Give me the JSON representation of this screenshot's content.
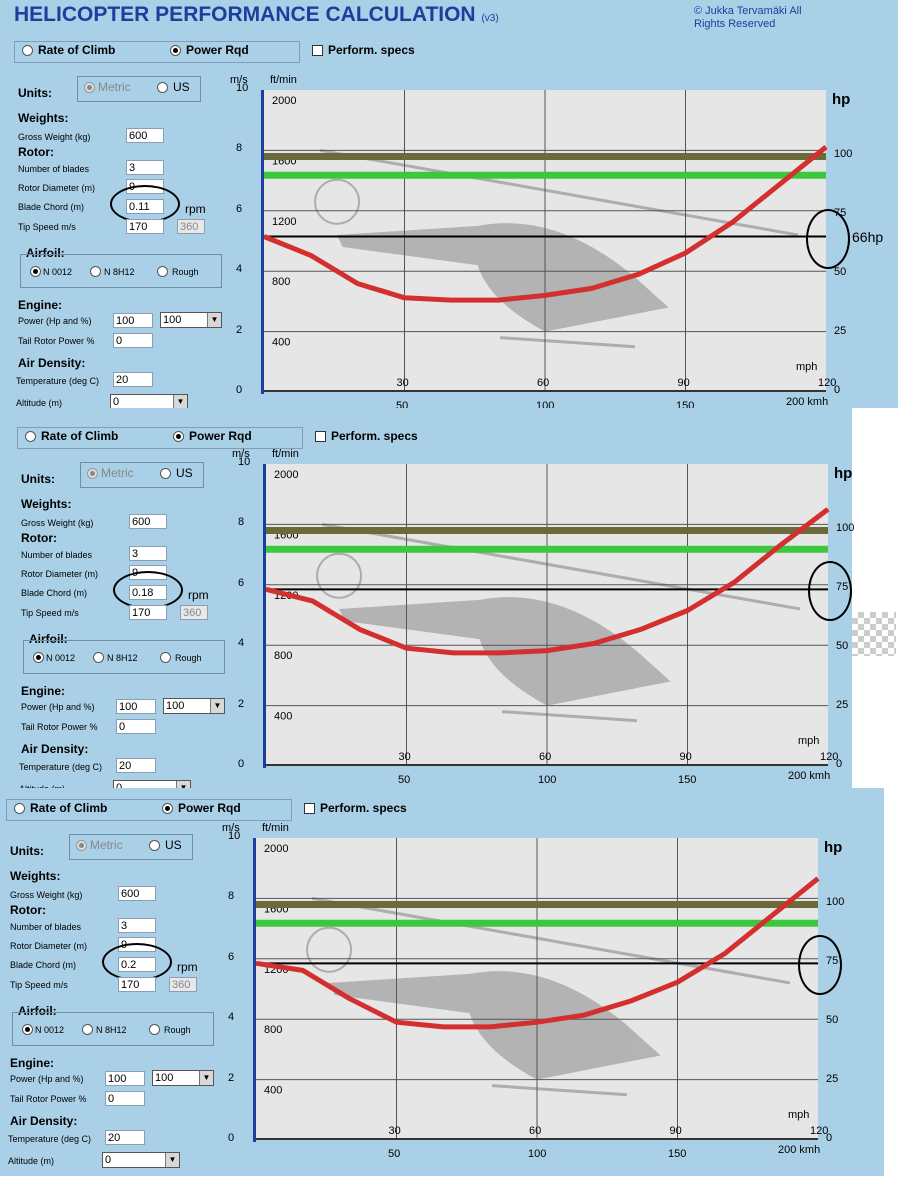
{
  "app": {
    "title": "HELICOPTER PERFORMANCE CALCULATION",
    "version": "(v3)",
    "copyright": "© Jukka Tervamäki All Rights Reserved"
  },
  "labels": {
    "mode_climb": "Rate of Climb",
    "mode_power": "Power Rqd",
    "perform_specs": "Perform. specs",
    "units": "Units:",
    "metric": "Metric",
    "us": "US",
    "weights": "Weights:",
    "gross_weight": "Gross Weight (kg)",
    "rotor": "Rotor:",
    "num_blades": "Number of blades",
    "rotor_diameter": "Rotor Diameter (m)",
    "blade_chord": "Blade Chord (m)",
    "rpm": "rpm",
    "tip_speed": "Tip Speed m/s",
    "airfoil": "Airfoil:",
    "airfoil_a": "N 0012",
    "airfoil_b": "N 8H12",
    "airfoil_c": "Rough",
    "engine": "Engine:",
    "power_hp": "Power (Hp and %)",
    "tail_rotor": "Tail Rotor Power %",
    "air_density": "Air Density:",
    "temperature": "Temperature (deg C)",
    "altitude": "Altitude (m)"
  },
  "chart_labels": {
    "ms": "m/s",
    "ftmin": "ft/min",
    "hp": "hp",
    "mph": "mph",
    "kmh": "200 kmh",
    "left_ticks": [
      "10",
      "8",
      "6",
      "4",
      "2",
      "0"
    ],
    "ftmin_ticks": [
      "2000",
      "1600",
      "1200",
      "800",
      "400"
    ],
    "hp_ticks": [
      "100",
      "75",
      "50",
      "25",
      "0"
    ],
    "mph_ticks": [
      "30",
      "60",
      "90",
      "120"
    ],
    "kmh_ticks": [
      "50",
      "100",
      "150"
    ]
  },
  "colors": {
    "panel": "#a9d0e6",
    "title": "#1c3f9f",
    "curve": "#d32f2f",
    "line_max": "#6b6a3a",
    "line_green": "#3cc83c"
  },
  "panels": [
    {
      "gross_weight": "600",
      "num_blades": "3",
      "rotor_diameter": "9",
      "blade_chord": "0.11",
      "tip_speed": "170",
      "rpm_value": "360",
      "power_hp": "100",
      "power_pct": "100",
      "tail_rotor": "0",
      "temperature": "20",
      "altitude": "0",
      "annotation": "66hp"
    },
    {
      "gross_weight": "600",
      "num_blades": "3",
      "rotor_diameter": "9",
      "blade_chord": "0.18",
      "tip_speed": "170",
      "rpm_value": "360",
      "power_hp": "100",
      "power_pct": "100",
      "tail_rotor": "0",
      "temperature": "20",
      "altitude": "0",
      "annotation": ""
    },
    {
      "gross_weight": "600",
      "num_blades": "3",
      "rotor_diameter": "9",
      "blade_chord": "0.2",
      "tip_speed": "170",
      "rpm_value": "360",
      "power_hp": "100",
      "power_pct": "100",
      "tail_rotor": "0",
      "temperature": "20",
      "altitude": "0",
      "annotation": ""
    }
  ],
  "chart_data": [
    {
      "type": "line",
      "xlabel": "mph",
      "ylabel": "hp",
      "xlim": [
        0,
        120
      ],
      "ylim": [
        0,
        100
      ],
      "series": [
        {
          "x": [
            0,
            10,
            20,
            30,
            40,
            50,
            60,
            70,
            80,
            90,
            100,
            110,
            120
          ],
          "y": [
            66,
            58,
            46,
            40,
            39,
            39,
            41,
            44,
            50,
            59,
            72,
            88,
            104
          ]
        }
      ],
      "max_power_hp": 100,
      "green_line_hp": 92,
      "marked_power_hp": 66
    },
    {
      "type": "line",
      "xlabel": "mph",
      "ylabel": "hp",
      "xlim": [
        0,
        120
      ],
      "ylim": [
        0,
        100
      ],
      "series": [
        {
          "x": [
            0,
            10,
            20,
            30,
            40,
            50,
            60,
            70,
            80,
            90,
            100,
            110,
            120
          ],
          "y": [
            75,
            70,
            58,
            50,
            48,
            48,
            49,
            52,
            58,
            66,
            78,
            94,
            109
          ]
        }
      ],
      "max_power_hp": 100,
      "green_line_hp": 92,
      "marked_power_hp": 75
    },
    {
      "type": "line",
      "xlabel": "mph",
      "ylabel": "hp",
      "xlim": [
        0,
        120
      ],
      "ylim": [
        0,
        100
      ],
      "series": [
        {
          "x": [
            0,
            10,
            20,
            30,
            40,
            50,
            60,
            70,
            80,
            90,
            100,
            110,
            120
          ],
          "y": [
            75,
            72,
            60,
            50,
            48,
            48,
            50,
            53,
            59,
            67,
            79,
            95,
            111
          ]
        }
      ],
      "max_power_hp": 100,
      "green_line_hp": 92,
      "marked_power_hp": 75
    }
  ]
}
